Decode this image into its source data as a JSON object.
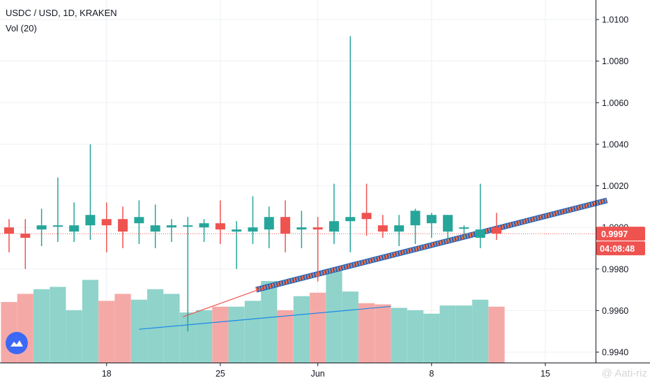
{
  "legend": {
    "symbol": "USDC / USD, 1D, KRAKEN",
    "indicator": "Vol (20)"
  },
  "price_tag": {
    "value": "0.9997",
    "countdown": "04:08:48"
  },
  "watermark": "@ Aati-riz",
  "colors": {
    "up": "#26a69a",
    "down": "#ef5350",
    "up_vol": "#8fd3cb",
    "down_vol": "#f5a9a7",
    "grid": "#eef0f4",
    "price_line": "#ef5350",
    "trend": "#1e88e5"
  },
  "chart_data": {
    "type": "candlestick",
    "title": "USDC / USD, 1D, KRAKEN",
    "ylim": [
      0.9935,
      1.0106
    ],
    "yticks": [
      1.01,
      1.008,
      1.006,
      1.004,
      1.002,
      1.0,
      0.998,
      0.996,
      0.994
    ],
    "xticks": [
      {
        "label": "18",
        "index": 6
      },
      {
        "label": "25",
        "index": 13
      },
      {
        "label": "Jun",
        "index": 19
      },
      {
        "label": "8",
        "index": 26
      },
      {
        "label": "15",
        "index": 33
      }
    ],
    "last_price": 0.9997,
    "candles": [
      {
        "o": 1.0,
        "h": 1.0004,
        "l": 0.9988,
        "c": 0.9997,
        "v": 52
      },
      {
        "o": 0.9997,
        "h": 1.0004,
        "l": 0.998,
        "c": 0.9995,
        "v": 59
      },
      {
        "o": 0.9999,
        "h": 1.0009,
        "l": 0.9991,
        "c": 1.0001,
        "v": 63
      },
      {
        "o": 1.0001,
        "h": 1.0024,
        "l": 0.9993,
        "c": 1.0001,
        "v": 65
      },
      {
        "o": 0.9998,
        "h": 1.0012,
        "l": 0.9993,
        "c": 1.0001,
        "v": 45
      },
      {
        "o": 1.0001,
        "h": 1.004,
        "l": 0.9994,
        "c": 1.0006,
        "v": 71
      },
      {
        "o": 1.0004,
        "h": 1.0012,
        "l": 0.9988,
        "c": 1.0001,
        "v": 53
      },
      {
        "o": 1.0004,
        "h": 1.001,
        "l": 0.999,
        "c": 0.9998,
        "v": 59
      },
      {
        "o": 1.0002,
        "h": 1.0013,
        "l": 0.9992,
        "c": 1.0005,
        "v": 54
      },
      {
        "o": 0.9998,
        "h": 1.0011,
        "l": 0.999,
        "c": 1.0001,
        "v": 63
      },
      {
        "o": 1.0,
        "h": 1.0004,
        "l": 0.9993,
        "c": 1.0001,
        "v": 59
      },
      {
        "o": 1.0001,
        "h": 1.0005,
        "l": 0.995,
        "c": 1.0001,
        "v": 43
      },
      {
        "o": 1.0,
        "h": 1.0004,
        "l": 0.9993,
        "c": 1.0002,
        "v": 45
      },
      {
        "o": 1.0002,
        "h": 1.0013,
        "l": 0.9992,
        "c": 0.9999,
        "v": 48
      },
      {
        "o": 0.9998,
        "h": 1.0003,
        "l": 0.998,
        "c": 0.9999,
        "v": 48
      },
      {
        "o": 0.9998,
        "h": 1.0015,
        "l": 0.9992,
        "c": 1.0,
        "v": 53
      },
      {
        "o": 0.9999,
        "h": 1.001,
        "l": 0.999,
        "c": 1.0005,
        "v": 70
      },
      {
        "o": 1.0005,
        "h": 1.0013,
        "l": 0.9988,
        "c": 0.9997,
        "v": 45
      },
      {
        "o": 0.9999,
        "h": 1.0008,
        "l": 0.999,
        "c": 1.0,
        "v": 57
      },
      {
        "o": 1.0,
        "h": 1.0005,
        "l": 0.9974,
        "c": 0.9999,
        "v": 60
      },
      {
        "o": 0.9998,
        "h": 1.0021,
        "l": 0.9992,
        "c": 1.0003,
        "v": 79
      },
      {
        "o": 1.0003,
        "h": 1.0092,
        "l": 0.9988,
        "c": 1.0005,
        "v": 61
      },
      {
        "o": 1.0007,
        "h": 1.0021,
        "l": 0.9996,
        "c": 1.0004,
        "v": 51
      },
      {
        "o": 1.0001,
        "h": 1.0006,
        "l": 0.9995,
        "c": 0.9998,
        "v": 50
      },
      {
        "o": 0.9998,
        "h": 1.0006,
        "l": 0.9991,
        "c": 1.0001,
        "v": 47
      },
      {
        "o": 1.0001,
        "h": 1.0009,
        "l": 0.9992,
        "c": 1.0008,
        "v": 45
      },
      {
        "o": 1.0002,
        "h": 1.0007,
        "l": 0.9995,
        "c": 1.0006,
        "v": 42
      },
      {
        "o": 0.9998,
        "h": 1.0006,
        "l": 0.9993,
        "c": 1.0006,
        "v": 49
      },
      {
        "o": 1.0,
        "h": 1.0001,
        "l": 0.9995,
        "c": 1.0,
        "v": 49
      },
      {
        "o": 0.9995,
        "h": 1.0021,
        "l": 0.999,
        "c": 0.9999,
        "v": 54
      },
      {
        "o": 1.0,
        "h": 1.0007,
        "l": 0.9994,
        "c": 0.9997,
        "v": 48
      }
    ],
    "trendlines": [
      {
        "name": "",
        "from": {
          "index": 15.2,
          "y": 0.997
        },
        "to": {
          "index": 36.8,
          "y": 1.0013
        },
        "style": "channel"
      },
      {
        "name": "",
        "from": {
          "index": 10.7,
          "y": 0.9957
        },
        "to": {
          "index": 15.7,
          "y": 0.9971
        },
        "style": "red"
      },
      {
        "name": "",
        "from": {
          "index": 8.0,
          "y": 0.9951
        },
        "to": {
          "index": 23.5,
          "y": 0.9962
        },
        "style": "blue"
      }
    ]
  }
}
